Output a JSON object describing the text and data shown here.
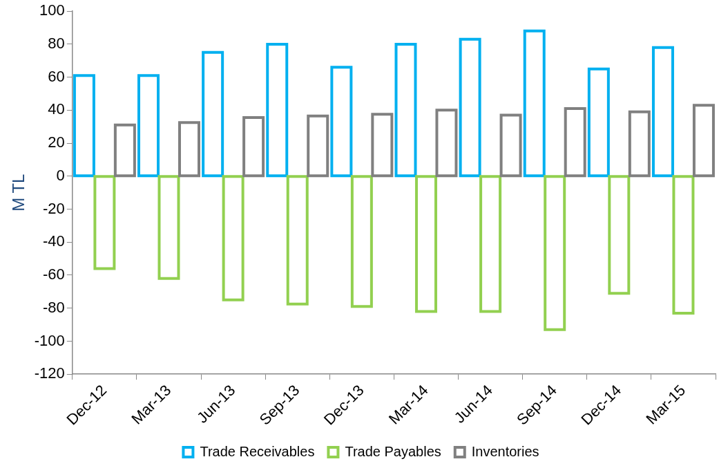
{
  "chart_data": {
    "type": "bar",
    "ylabel": "M TL",
    "categories": [
      "Dec-12",
      "Mar-13",
      "Jun-13",
      "Sep-13",
      "Dec-13",
      "Mar-14",
      "Jun-14",
      "Sep-14",
      "Dec-14",
      "Mar-15"
    ],
    "series": [
      {
        "name": "Trade Receivables",
        "color": "#00b0f0",
        "values": [
          61,
          61,
          75,
          80,
          66,
          80,
          83,
          88,
          65,
          78
        ]
      },
      {
        "name": "Trade Payables",
        "color": "#92d050",
        "values": [
          -56,
          -62,
          -75,
          -77.5,
          -79,
          -82,
          -82,
          -93,
          -71,
          -83
        ]
      },
      {
        "name": "Inventories",
        "color": "#808080",
        "values": [
          31,
          32.5,
          35.5,
          36.5,
          37.5,
          40,
          37,
          41,
          39,
          43
        ]
      }
    ],
    "ylim": [
      -120,
      100
    ],
    "yticks": [
      -120,
      -100,
      -80,
      -60,
      -40,
      -20,
      0,
      20,
      40,
      60,
      80,
      100
    ],
    "grid": false,
    "legend": "bottom"
  }
}
